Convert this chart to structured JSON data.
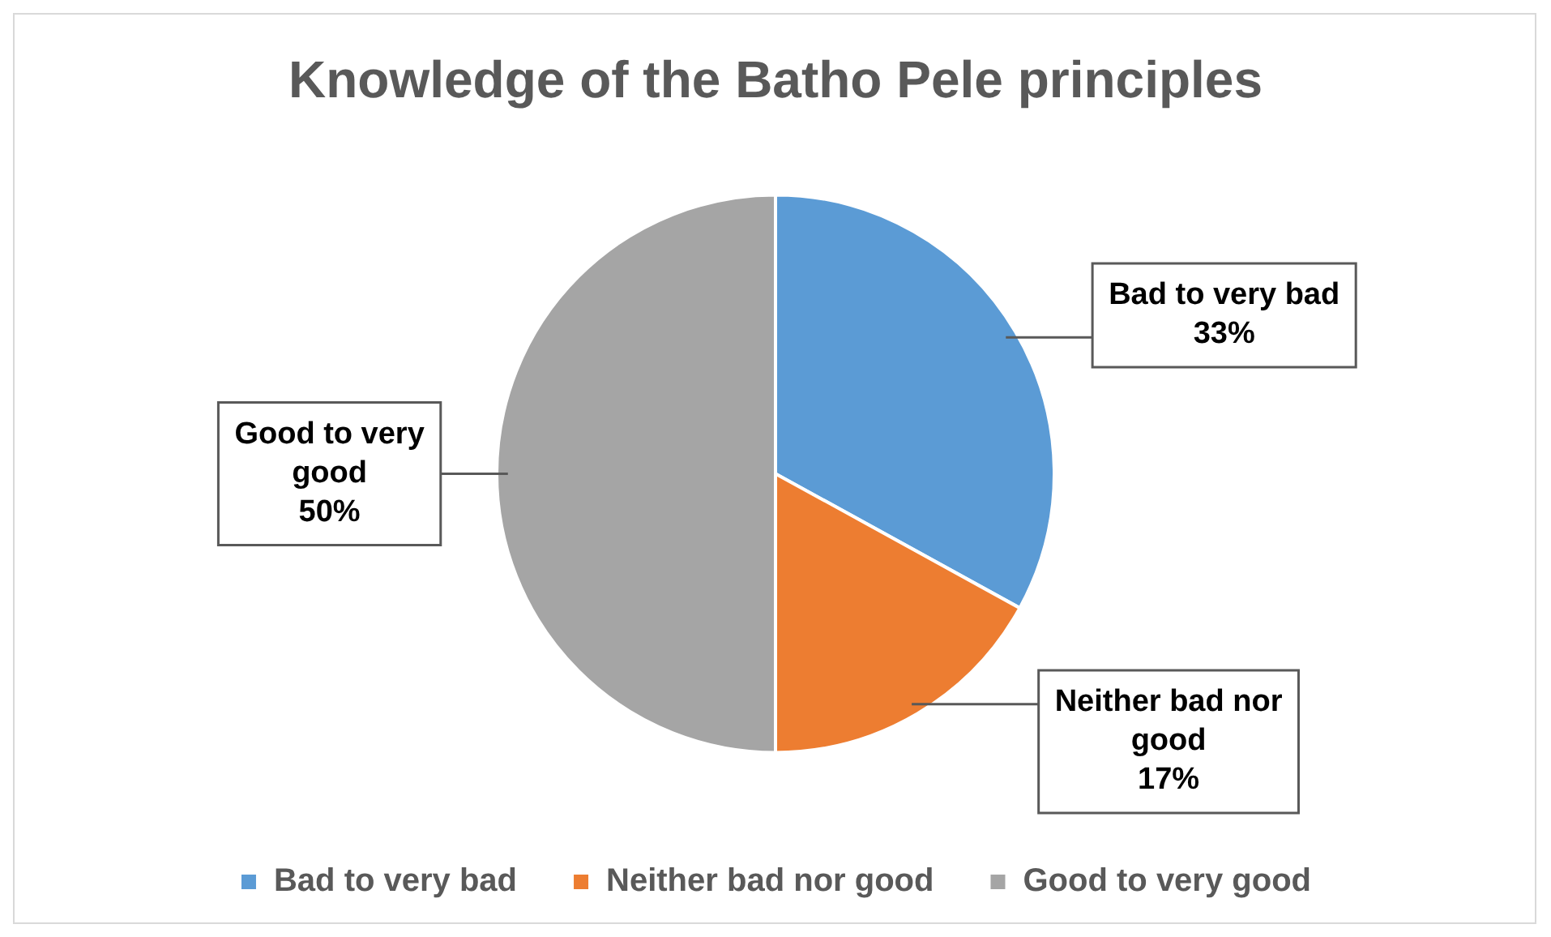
{
  "chart_data": {
    "type": "pie",
    "title": "Knowledge of the Batho Pele principles",
    "categories": [
      "Bad to very bad",
      "Neither bad nor good",
      "Good to very good"
    ],
    "values": [
      33,
      17,
      50
    ],
    "colors": [
      "#5b9bd5",
      "#ed7d31",
      "#a5a5a5"
    ],
    "value_labels": [
      "33%",
      "17%",
      "50%"
    ],
    "legend": "bottom"
  }
}
